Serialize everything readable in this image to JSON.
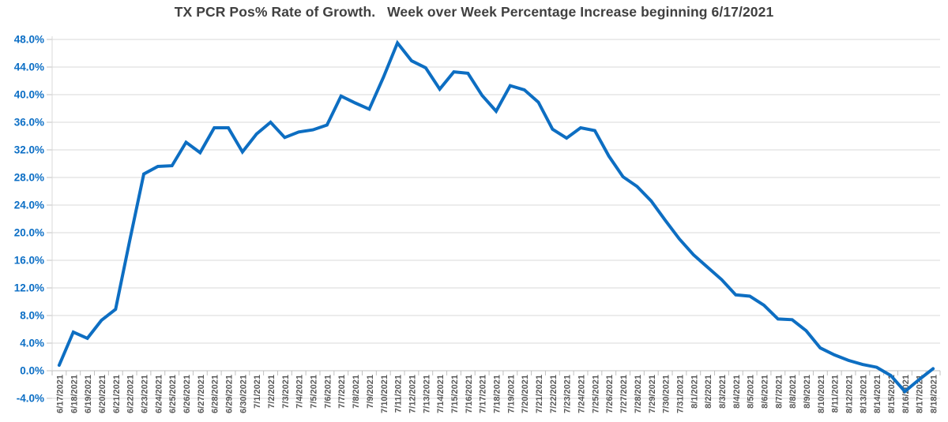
{
  "chart_data": {
    "type": "line",
    "title": "TX PCR Pos% Rate of Growth.   Week over Week Percentage Increase beginning 6/17/2021",
    "series_name": "TX PCR Pos% rate of growth",
    "x": [
      "6/17/2021",
      "6/18/2021",
      "6/19/2021",
      "6/20/2021",
      "6/21/2021",
      "6/22/2021",
      "6/23/2021",
      "6/24/2021",
      "6/25/2021",
      "6/26/2021",
      "6/27/2021",
      "6/28/2021",
      "6/29/2021",
      "6/30/2021",
      "7/1/2021",
      "7/2/2021",
      "7/3/2021",
      "7/4/2021",
      "7/5/2021",
      "7/6/2021",
      "7/7/2021",
      "7/8/2021",
      "7/9/2021",
      "7/10/2021",
      "7/11/2021",
      "7/12/2021",
      "7/13/2021",
      "7/14/2021",
      "7/15/2021",
      "7/16/2021",
      "7/17/2021",
      "7/18/2021",
      "7/19/2021",
      "7/20/2021",
      "7/21/2021",
      "7/22/2021",
      "7/23/2021",
      "7/24/2021",
      "7/25/2021",
      "7/26/2021",
      "7/27/2021",
      "7/28/2021",
      "7/29/2021",
      "7/30/2021",
      "7/31/2021",
      "8/1/2021",
      "8/2/2021",
      "8/3/2021",
      "8/4/2021",
      "8/5/2021",
      "8/6/2021",
      "8/7/2021",
      "8/8/2021",
      "8/9/2021",
      "8/10/2021",
      "8/11/2021",
      "8/12/2021",
      "8/13/2021",
      "8/14/2021",
      "8/15/2021",
      "8/16/2021",
      "8/17/2021",
      "8/18/2021"
    ],
    "values": [
      0.8,
      5.6,
      4.7,
      7.3,
      8.9,
      18.8,
      28.5,
      29.6,
      29.7,
      33.1,
      31.6,
      35.2,
      35.2,
      31.7,
      34.3,
      36.0,
      33.8,
      34.6,
      34.9,
      35.6,
      39.8,
      38.8,
      37.9,
      42.5,
      47.5,
      44.9,
      43.9,
      40.8,
      43.3,
      43.1,
      39.9,
      37.6,
      41.3,
      40.7,
      38.9,
      35.0,
      33.7,
      35.2,
      34.8,
      31.1,
      28.1,
      26.7,
      24.6,
      21.8,
      19.1,
      16.8,
      15.0,
      13.2,
      11.0,
      10.8,
      9.5,
      7.5,
      7.4,
      5.8,
      3.3,
      2.3,
      1.5,
      0.9,
      0.5,
      -0.7,
      -3.0,
      -1.3,
      0.3
    ],
    "ylim": [
      -4,
      48
    ],
    "ytick_step": 4,
    "ytick_labels": [
      "-4.0%",
      "0.0%",
      "4.0%",
      "8.0%",
      "12.0%",
      "16.0%",
      "20.0%",
      "24.0%",
      "28.0%",
      "32.0%",
      "36.0%",
      "40.0%",
      "44.0%",
      "48.0%"
    ],
    "grid": true,
    "legend": "none",
    "colors": {
      "line": "#0d6ec2",
      "y_tick_labels": "#0b6ec5",
      "x_tick_labels": "#595959",
      "title": "#404040",
      "gridline": "#d9d9d9",
      "axis_line": "#c0c0c0",
      "background": "#ffffff"
    }
  }
}
